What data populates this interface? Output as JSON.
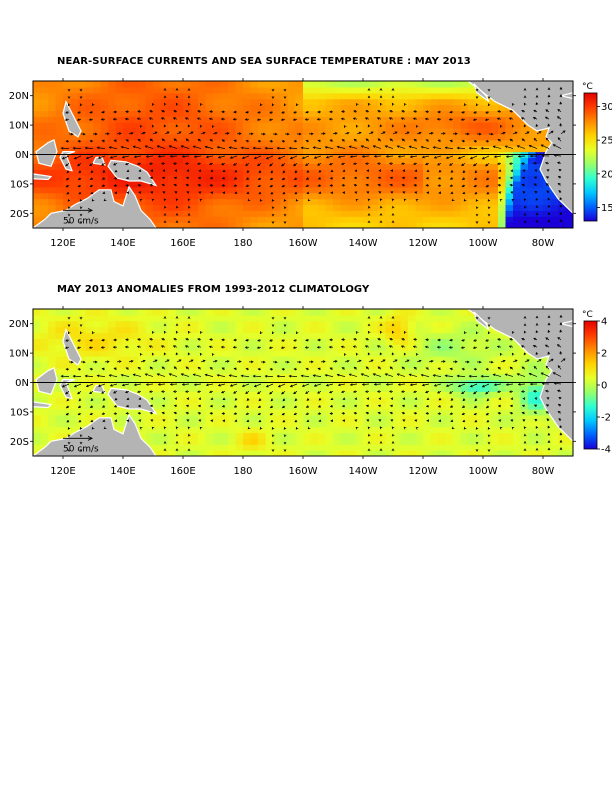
{
  "panels": [
    {
      "id": "sst",
      "title": "NEAR-SURFACE CURRENTS AND SEA SURFACE TEMPERATURE : MAY 2013",
      "field": "sea surface temperature",
      "colorbar": {
        "unit": "°C",
        "min": 13,
        "max": 32,
        "ticks": [
          15,
          20,
          25,
          30
        ],
        "tick_labels": [
          "15",
          "20",
          "25",
          "30"
        ],
        "stops": [
          "#1a00d6",
          "#0062ff",
          "#00c8ff",
          "#30ffd0",
          "#98ff6a",
          "#e8ff28",
          "#ffd200",
          "#ff8a00",
          "#ff3c00",
          "#e40000"
        ]
      },
      "scale_arrow_label": "50 cm/s"
    },
    {
      "id": "anom",
      "title": "MAY 2013 ANOMALIES FROM 1993-2012 CLIMATOLOGY",
      "field": "sea surface temperature anomaly",
      "colorbar": {
        "unit": "°C",
        "min": -4,
        "max": 4,
        "ticks": [
          -4,
          -2,
          0,
          2,
          4
        ],
        "tick_labels": [
          "-4",
          "-2",
          "0",
          "2",
          "4"
        ],
        "stops": [
          "#1a00d6",
          "#0062ff",
          "#00c8ff",
          "#30ffd0",
          "#98ff6a",
          "#e8ff28",
          "#ffd200",
          "#ff8a00",
          "#ff3c00",
          "#e40000"
        ]
      },
      "scale_arrow_label": "50 cm/s"
    }
  ],
  "map": {
    "region": "Tropical Pacific",
    "lon_range": [
      110,
      290
    ],
    "lat_range": [
      -25,
      25
    ],
    "lat_ticks": [
      20,
      10,
      0,
      -10,
      -20
    ],
    "lat_labels": [
      "20N",
      "10N",
      "0N",
      "10S",
      "20S"
    ],
    "lon_ticks": [
      120,
      140,
      160,
      180,
      200,
      220,
      240,
      260,
      280
    ],
    "lon_labels": [
      "120E",
      "140E",
      "160E",
      "180",
      "160W",
      "140W",
      "120W",
      "100W",
      "80W"
    ],
    "equator_line": true,
    "land_color": "#b4b4b4"
  }
}
